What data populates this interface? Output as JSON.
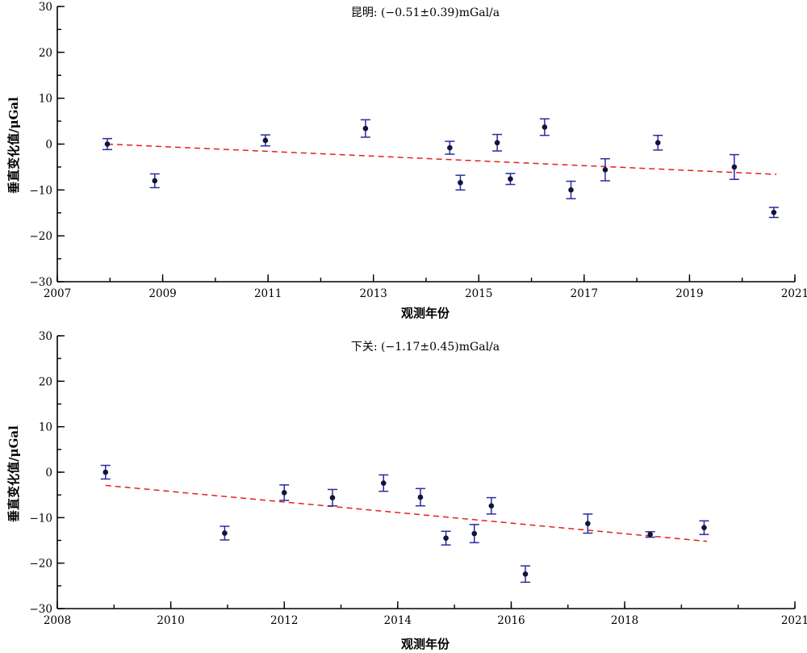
{
  "chart_data": [
    {
      "type": "scatter",
      "title": "昆明: (−0.51±0.39)mGal/a",
      "xlabel": "观测年份",
      "ylabel": "垂直变化值/μGal",
      "xlim": [
        2007,
        2021
      ],
      "ylim": [
        -30,
        30
      ],
      "x_ticks": [
        2007,
        2009,
        2011,
        2013,
        2015,
        2017,
        2019,
        2021
      ],
      "x_minor_step": 1,
      "y_ticks": [
        -30,
        -20,
        -10,
        0,
        10,
        20,
        30
      ],
      "y_minor_step": 5,
      "points": [
        {
          "x": 2007.95,
          "y": 0.0,
          "err": 1.2
        },
        {
          "x": 2008.85,
          "y": -8.0,
          "err": 1.5
        },
        {
          "x": 2010.95,
          "y": 0.8,
          "err": 1.2
        },
        {
          "x": 2012.85,
          "y": 3.4,
          "err": 1.9
        },
        {
          "x": 2014.45,
          "y": -0.8,
          "err": 1.4
        },
        {
          "x": 2014.65,
          "y": -8.4,
          "err": 1.6
        },
        {
          "x": 2015.35,
          "y": 0.3,
          "err": 1.8
        },
        {
          "x": 2015.6,
          "y": -7.6,
          "err": 1.2
        },
        {
          "x": 2016.25,
          "y": 3.7,
          "err": 1.8
        },
        {
          "x": 2016.75,
          "y": -10.0,
          "err": 1.9
        },
        {
          "x": 2017.4,
          "y": -5.6,
          "err": 2.4
        },
        {
          "x": 2018.4,
          "y": 0.3,
          "err": 1.6
        },
        {
          "x": 2019.85,
          "y": -5.0,
          "err": 2.7
        },
        {
          "x": 2020.6,
          "y": -14.9,
          "err": 1.1
        }
      ],
      "trend": {
        "x": [
          2007.95,
          2020.65
        ],
        "y": [
          0.0,
          -6.6
        ]
      }
    },
    {
      "type": "scatter",
      "title": "下关: (−1.17±0.45)mGal/a",
      "xlabel": "观测年份",
      "ylabel": "垂直变化值/μGal",
      "xlim": [
        2008,
        2021
      ],
      "ylim": [
        -30,
        30
      ],
      "x_ticks": [
        2008,
        2010,
        2012,
        2014,
        2016,
        2018,
        2021
      ],
      "x_minor_step": 1,
      "y_ticks": [
        -30,
        -20,
        -10,
        0,
        10,
        20,
        30
      ],
      "y_minor_step": 5,
      "points": [
        {
          "x": 2008.85,
          "y": 0.0,
          "err": 1.5
        },
        {
          "x": 2010.95,
          "y": -13.4,
          "err": 1.5
        },
        {
          "x": 2012.0,
          "y": -4.5,
          "err": 1.7
        },
        {
          "x": 2012.85,
          "y": -5.6,
          "err": 1.8
        },
        {
          "x": 2013.75,
          "y": -2.4,
          "err": 1.8
        },
        {
          "x": 2014.4,
          "y": -5.5,
          "err": 1.9
        },
        {
          "x": 2014.85,
          "y": -14.5,
          "err": 1.5
        },
        {
          "x": 2015.35,
          "y": -13.5,
          "err": 2.0
        },
        {
          "x": 2015.65,
          "y": -7.4,
          "err": 1.8
        },
        {
          "x": 2016.25,
          "y": -22.4,
          "err": 1.8
        },
        {
          "x": 2017.35,
          "y": -11.3,
          "err": 2.1
        },
        {
          "x": 2018.45,
          "y": -13.7,
          "err": 0.6
        },
        {
          "x": 2019.4,
          "y": -12.2,
          "err": 1.5
        }
      ],
      "trend": {
        "x": [
          2008.85,
          2019.45
        ],
        "y": [
          -2.9,
          -15.2
        ]
      }
    }
  ]
}
